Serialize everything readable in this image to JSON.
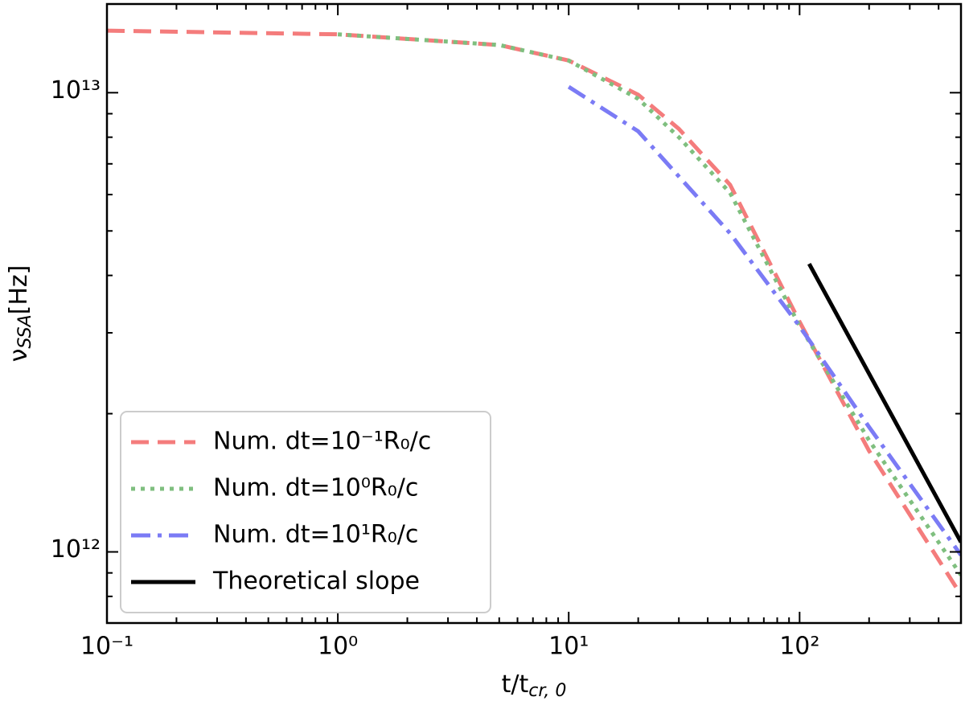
{
  "chart_data": {
    "type": "line",
    "xscale": "log",
    "yscale": "log",
    "xlim": [
      0.1,
      500
    ],
    "ylim": [
      700000000000,
      15600000000000
    ],
    "xticks": [
      {
        "value": 0.1,
        "label": "10⁻¹"
      },
      {
        "value": 1,
        "label": "10⁰"
      },
      {
        "value": 10,
        "label": "10¹"
      },
      {
        "value": 100,
        "label": "10²"
      }
    ],
    "yticks": [
      {
        "value": 1000000000000,
        "label": "10¹²"
      },
      {
        "value": 10000000000000,
        "label": "10¹³"
      }
    ],
    "xminorticks": [
      0.2,
      0.3,
      0.4,
      0.5,
      0.6,
      0.7,
      0.8,
      0.9,
      2,
      3,
      4,
      5,
      6,
      7,
      8,
      9,
      20,
      30,
      40,
      50,
      60,
      70,
      80,
      90,
      200,
      300,
      400
    ],
    "yminorticks": [
      800000000000,
      900000000000,
      2000000000000,
      3000000000000,
      4000000000000,
      5000000000000,
      6000000000000,
      7000000000000,
      8000000000000,
      9000000000000
    ],
    "xlabel": {
      "main": "t/t",
      "sub": "cr, 0"
    },
    "ylabel": {
      "main": "ν",
      "sub": "SSA",
      "suffix": "[Hz]"
    },
    "legend": "lower left",
    "series": [
      {
        "name": "Num. dt=10⁻¹R₀/c",
        "color": "#f47c7c",
        "style": "dashed",
        "x": [
          0.1,
          1,
          5,
          10,
          20,
          30,
          50,
          100,
          200,
          500
        ],
        "values": [
          13650000000000,
          13400000000000,
          12700000000000,
          11750000000000,
          9900000000000,
          8340000000000,
          6300000000000,
          3170000000000,
          1660000000000,
          806000000000
        ]
      },
      {
        "name": "Num. dt=10⁰R₀/c",
        "color": "#7fbf7f",
        "style": "dotted",
        "x": [
          1,
          5,
          10,
          20,
          30,
          50,
          100,
          200,
          500
        ],
        "values": [
          13400000000000,
          12700000000000,
          11750000000000,
          9700000000000,
          8000000000000,
          6050000000000,
          3110000000000,
          1750000000000,
          890000000000
        ]
      },
      {
        "name": "Num. dt=10¹R₀/c",
        "color": "#7b7bf5",
        "style": "dashdot",
        "x": [
          10,
          20,
          50,
          100,
          200,
          500
        ],
        "values": [
          10300000000000,
          8240000000000,
          4940000000000,
          3100000000000,
          1870000000000,
          984000000000
        ]
      },
      {
        "name": "Theoretical slope",
        "color": "#000000",
        "style": "solid",
        "x": [
          110,
          500
        ],
        "values": [
          4240000000000,
          1050000000000
        ]
      }
    ]
  }
}
